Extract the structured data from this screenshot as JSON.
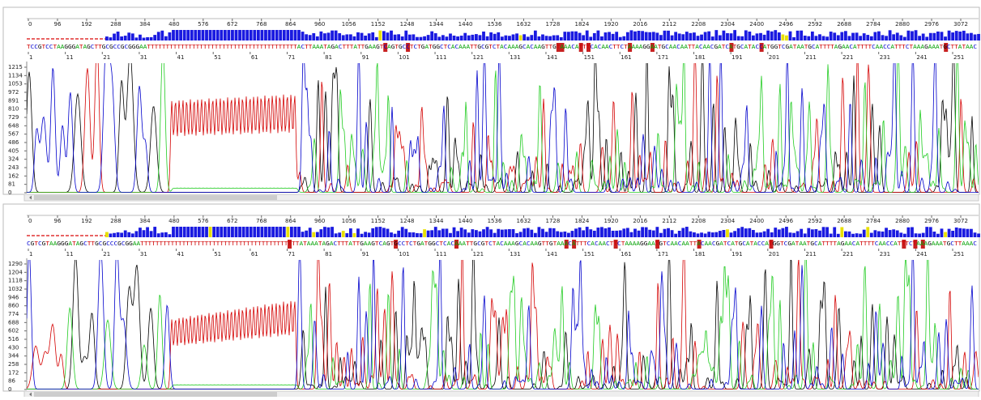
{
  "panels": [
    {
      "ruler_ticks": [
        0,
        96,
        192,
        288,
        384,
        480,
        576,
        672,
        768,
        864,
        960,
        1056,
        1152,
        1248,
        1344,
        1440,
        1536,
        1632,
        1728,
        1824,
        1920,
        2016,
        2112,
        2208,
        2304,
        2400,
        2496,
        2592,
        2688,
        2784,
        2880,
        2976,
        3072
      ],
      "sequence": "TCCGTCCTAAGGGATAGCTTGCGCCGCGGGAATTTTTTTTTTTTTTTTTTTTTTTTTTTTTTTTTTTTTTTTACTTAAATAGACTTTATTGAAGTCAGTGCCTCTGATGGCTCACAAATTGCGTCTACAAAGCACAAGTTGTAAACATTTCACAACTTCTAAAAGGAATGCAACAATTACAACGATCATGCATACCATGGTCGATAATGCATTTTAGAACATTTTCAACCATTTCTAAAGAAATGCTTATAAC",
      "position_ticks": [
        1,
        11,
        21,
        31,
        41,
        51,
        61,
        71,
        81,
        91,
        101,
        111,
        121,
        131,
        141,
        151,
        161,
        171,
        181,
        191,
        201,
        211,
        221,
        231,
        241,
        251
      ],
      "yticks": [
        0,
        81,
        162,
        243,
        324,
        405,
        486,
        567,
        648,
        729,
        810,
        891,
        972,
        1053,
        1134,
        1215
      ]
    },
    {
      "ruler_ticks": [
        0,
        96,
        192,
        288,
        384,
        480,
        576,
        672,
        768,
        864,
        960,
        1056,
        1152,
        1248,
        1344,
        1440,
        1536,
        1632,
        1728,
        1824,
        1920,
        2016,
        2112,
        2208,
        2304,
        2400,
        2496,
        2592,
        2688,
        2784,
        2880,
        2976,
        3072
      ],
      "sequence": "CGTCGTAAGGGATAGCTTGCGCCCGCGGAATTTTTTTTTTTTTTTTTTTTTTTTTTTTTTTTTTTTTTTTTTATAAATAGACTTTATTGAAGTCAGTGCCTCTGATGGCTCACAAATTGCGTCTACAAAGCACAAGTTGTAAACATTTCACAACTTCTAAAAGGAATGTCAACAATTACAACGATCATGCATACCATGGTCGATAATGCATTTTAGAACATTTTCAACCATTTCTAAAGAAATGCTTAAAC",
      "position_ticks": [
        1,
        11,
        21,
        31,
        41,
        51,
        61,
        71,
        81,
        91,
        101,
        111,
        121,
        131,
        141,
        151,
        161,
        171,
        181,
        191,
        201,
        211,
        221,
        231,
        241,
        251
      ],
      "yticks": [
        0,
        86,
        172,
        258,
        344,
        430,
        516,
        602,
        688,
        774,
        860,
        946,
        1032,
        1118,
        1204,
        1290
      ]
    }
  ]
}
